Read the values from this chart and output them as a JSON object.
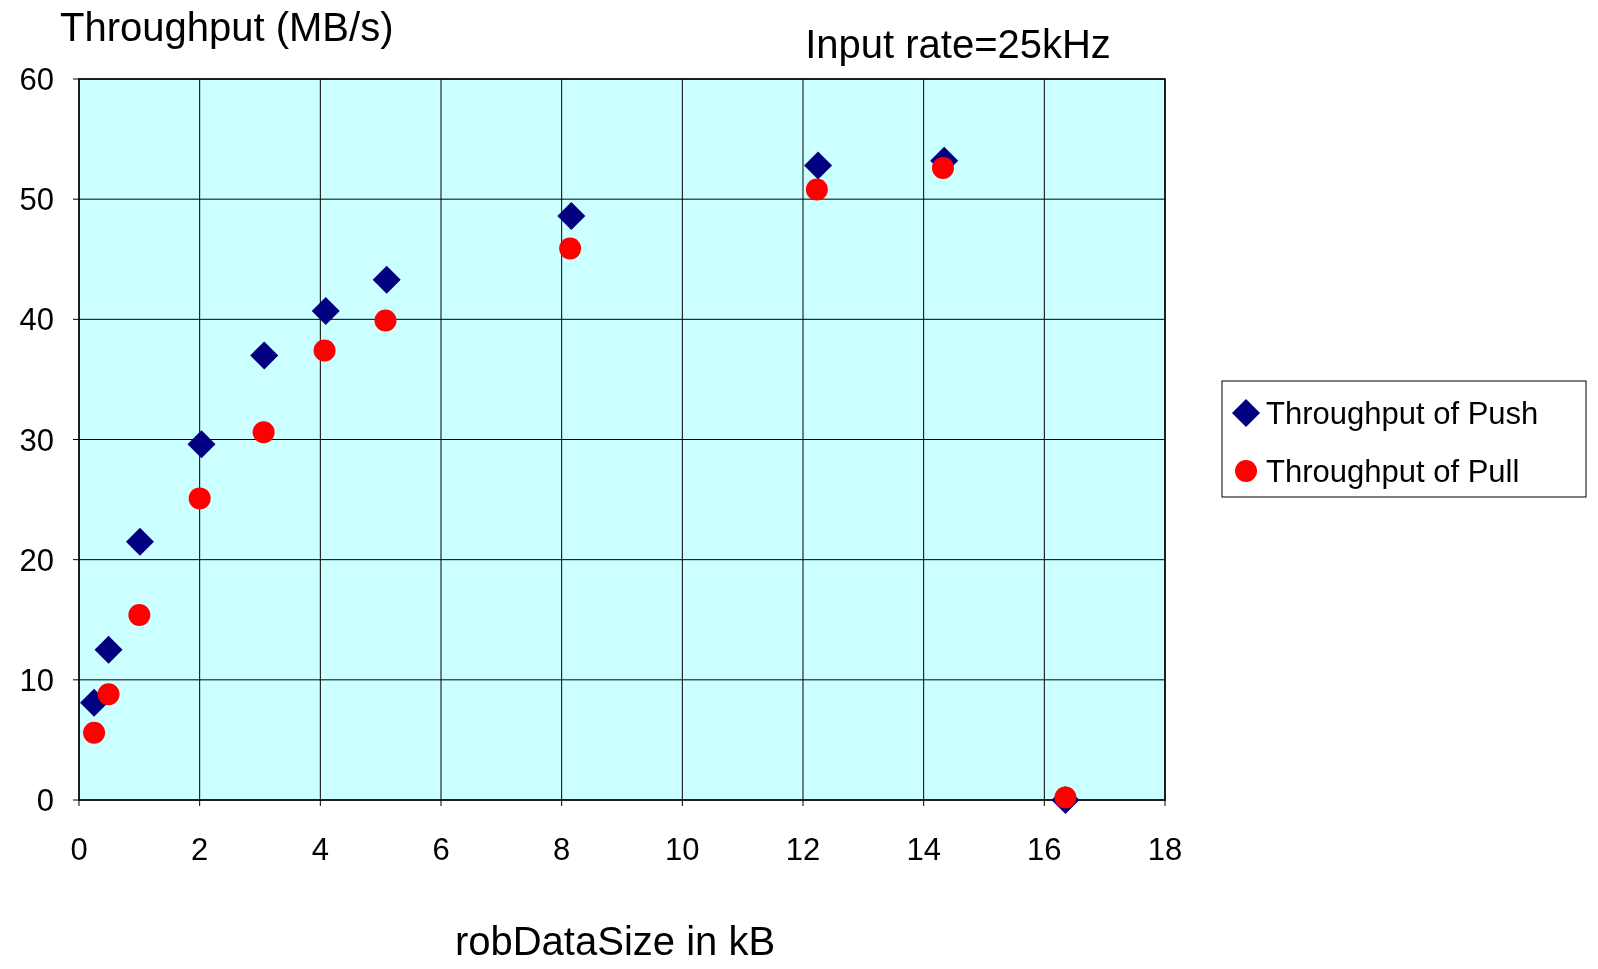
{
  "chart_data": {
    "type": "scatter",
    "title": "Input rate=25kHz",
    "xlabel": "robDataSize in kB",
    "ylabel": "Throughput (MB/s)",
    "xlim": [
      0,
      18
    ],
    "xticks": [
      0,
      2,
      4,
      6,
      8,
      10,
      12,
      14,
      16,
      18
    ],
    "ylim": [
      0,
      60
    ],
    "yticks": [
      0,
      10,
      20,
      30,
      40,
      50,
      60
    ],
    "grid": true,
    "legend": "right",
    "series": [
      {
        "name": "Throughput of Push",
        "color": "#000080",
        "marker": "diamond",
        "x": [
          0.25,
          0.49,
          1.01,
          2.03,
          3.07,
          4.09,
          5.1,
          8.16,
          12.25,
          14.34,
          16.35
        ],
        "values": [
          8.1,
          12.5,
          21.5,
          29.6,
          37.0,
          40.7,
          43.3,
          48.6,
          52.8,
          53.2,
          0
        ]
      },
      {
        "name": "Throughput of Pull",
        "color": "#ff0000",
        "marker": "circle",
        "x": [
          0.25,
          0.49,
          1.0,
          2.0,
          3.06,
          4.07,
          5.08,
          8.14,
          12.23,
          14.32,
          16.35
        ],
        "values": [
          5.6,
          8.8,
          15.4,
          25.1,
          30.6,
          37.4,
          39.9,
          45.9,
          50.8,
          52.6,
          0.2
        ]
      }
    ]
  }
}
